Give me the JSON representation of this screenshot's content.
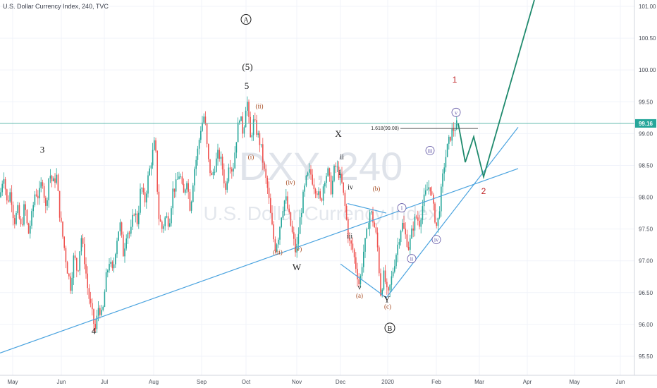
{
  "title": "U.S. Dollar Currency Index, 240, TVC",
  "watermark": {
    "symbol": "DXY, 240",
    "name": "U.S. Dollar Currency Index"
  },
  "chart_data": {
    "type": "candlestick",
    "y_ticks": [
      "95.50",
      "96.00",
      "96.50",
      "97.00",
      "97.50",
      "98.00",
      "98.50",
      "99.00",
      "99.50",
      "100.00",
      "100.50",
      "101.00"
    ],
    "x_ticks": [
      "May",
      "Jun",
      "Jul",
      "Aug",
      "Sep",
      "Oct",
      "Nov",
      "Dec",
      "2020",
      "Feb",
      "Mar",
      "Apr",
      "May",
      "Jun"
    ],
    "ylim": [
      95.2,
      101.1
    ],
    "last_price": {
      "label": "99.16",
      "value": 99.16,
      "color": "#26a69a"
    },
    "fib_label": {
      "text": "1.618(99.08)",
      "value": 99.08
    },
    "colors": {
      "up": "#26a69a",
      "down": "#ef5350",
      "trendline": "#4aa3df",
      "projection": "#1f8a6d",
      "hline": "#5fb9ad"
    },
    "price_path": [
      [
        0,
        98.0
      ],
      [
        5,
        98.4
      ],
      [
        10,
        97.9
      ],
      [
        15,
        98.1
      ],
      [
        20,
        97.6
      ],
      [
        25,
        97.8
      ],
      [
        30,
        97.5
      ],
      [
        35,
        97.9
      ],
      [
        40,
        97.4
      ],
      [
        45,
        97.7
      ],
      [
        50,
        98.1
      ],
      [
        55,
        98.0
      ],
      [
        60,
        98.3
      ],
      [
        65,
        97.8
      ],
      [
        70,
        98.4
      ],
      [
        75,
        98.2
      ],
      [
        80,
        98.35
      ],
      [
        85,
        97.7
      ],
      [
        90,
        97.3
      ],
      [
        95,
        96.9
      ],
      [
        100,
        96.6
      ],
      [
        105,
        97.1
      ],
      [
        110,
        96.8
      ],
      [
        115,
        97.4
      ],
      [
        120,
        97.0
      ],
      [
        125,
        96.5
      ],
      [
        130,
        96.2
      ],
      [
        135,
        95.9
      ],
      [
        140,
        96.3
      ],
      [
        145,
        96.1
      ],
      [
        150,
        96.7
      ],
      [
        155,
        97.0
      ],
      [
        160,
        96.8
      ],
      [
        165,
        97.3
      ],
      [
        170,
        97.6
      ],
      [
        175,
        97.1
      ],
      [
        180,
        97.5
      ],
      [
        185,
        97.4
      ],
      [
        190,
        97.8
      ],
      [
        195,
        97.6
      ],
      [
        200,
        98.2
      ],
      [
        205,
        97.9
      ],
      [
        210,
        98.3
      ],
      [
        215,
        98.6
      ],
      [
        220,
        98.9
      ],
      [
        225,
        97.7
      ],
      [
        230,
        97.5
      ],
      [
        235,
        97.7
      ],
      [
        240,
        97.6
      ],
      [
        245,
        98.1
      ],
      [
        250,
        98.2
      ],
      [
        255,
        98.4
      ],
      [
        260,
        98.0
      ],
      [
        265,
        98.3
      ],
      [
        270,
        97.8
      ],
      [
        275,
        98.4
      ],
      [
        280,
        98.7
      ],
      [
        285,
        99.1
      ],
      [
        290,
        99.3
      ],
      [
        295,
        98.6
      ],
      [
        300,
        98.3
      ],
      [
        305,
        98.5
      ],
      [
        310,
        98.7
      ],
      [
        315,
        98.5
      ],
      [
        320,
        98.1
      ],
      [
        325,
        98.6
      ],
      [
        330,
        98.4
      ],
      [
        335,
        98.9
      ],
      [
        340,
        99.3
      ],
      [
        345,
        99.0
      ],
      [
        350,
        99.6
      ],
      [
        355,
        98.9
      ],
      [
        360,
        99.2
      ],
      [
        365,
        99.0
      ],
      [
        370,
        98.8
      ],
      [
        375,
        98.4
      ],
      [
        380,
        98.1
      ],
      [
        385,
        97.6
      ],
      [
        390,
        97.2
      ],
      [
        395,
        97.4
      ],
      [
        400,
        97.8
      ],
      [
        405,
        98.0
      ],
      [
        410,
        97.7
      ],
      [
        415,
        97.4
      ],
      [
        420,
        97.1
      ],
      [
        425,
        97.6
      ],
      [
        430,
        98.0
      ],
      [
        435,
        98.3
      ],
      [
        440,
        98.4
      ],
      [
        445,
        98.2
      ],
      [
        450,
        98.1
      ],
      [
        455,
        97.9
      ],
      [
        460,
        98.3
      ],
      [
        465,
        98.4
      ],
      [
        470,
        98.1
      ],
      [
        475,
        98.5
      ],
      [
        480,
        98.4
      ],
      [
        485,
        98.2
      ],
      [
        490,
        97.8
      ],
      [
        495,
        97.3
      ],
      [
        500,
        97.2
      ],
      [
        505,
        96.9
      ],
      [
        510,
        96.6
      ],
      [
        515,
        97.1
      ],
      [
        520,
        97.4
      ],
      [
        525,
        97.8
      ],
      [
        530,
        97.6
      ],
      [
        535,
        97.3
      ],
      [
        540,
        96.5
      ],
      [
        545,
        96.8
      ],
      [
        550,
        96.4
      ],
      [
        555,
        96.7
      ],
      [
        560,
        97.0
      ],
      [
        565,
        97.3
      ],
      [
        570,
        97.6
      ],
      [
        575,
        97.4
      ],
      [
        580,
        97.2
      ],
      [
        585,
        97.5
      ],
      [
        590,
        97.7
      ],
      [
        595,
        97.6
      ],
      [
        600,
        97.9
      ],
      [
        605,
        98.1
      ],
      [
        610,
        98.2
      ],
      [
        615,
        97.8
      ],
      [
        620,
        97.5
      ],
      [
        625,
        98.0
      ],
      [
        630,
        98.5
      ],
      [
        635,
        98.8
      ],
      [
        640,
        99.0
      ],
      [
        645,
        99.1
      ],
      [
        650,
        99.16
      ]
    ],
    "trendlines": [
      {
        "from": [
          0,
          95.55
        ],
        "to": [
          735,
          98.45
        ]
      },
      {
        "from": [
          548,
          96.42
        ],
        "to": [
          735,
          99.1
        ]
      },
      {
        "from": [
          493,
          97.9
        ],
        "to": [
          548,
          97.75
        ]
      },
      {
        "from": [
          483,
          96.95
        ],
        "to": [
          548,
          96.42
        ]
      }
    ],
    "projection": [
      [
        650,
        99.16
      ],
      [
        660,
        98.55
      ],
      [
        672,
        98.95
      ],
      [
        686,
        98.32
      ],
      [
        758,
        101.1
      ]
    ],
    "wave_labels": [
      {
        "text": "A",
        "x": 349,
        "y": 100.75,
        "style": "black-circle"
      },
      {
        "text": "(5)",
        "x": 351,
        "y": 100.0,
        "style": "black"
      },
      {
        "text": "5",
        "x": 350,
        "y": 99.7,
        "style": "black"
      },
      {
        "text": "3",
        "x": 60,
        "y": 98.7,
        "style": "black"
      },
      {
        "text": "4",
        "x": 133,
        "y": 95.85,
        "style": "black"
      },
      {
        "text": "W",
        "x": 421,
        "y": 96.85,
        "style": "black"
      },
      {
        "text": "X",
        "x": 480,
        "y": 98.95,
        "style": "black"
      },
      {
        "text": "Y",
        "x": 549,
        "y": 96.35,
        "style": "black"
      },
      {
        "text": "B",
        "x": 553,
        "y": 95.9,
        "style": "black-circle"
      },
      {
        "text": "(ii)",
        "x": 368,
        "y": 99.4,
        "style": "brown"
      },
      {
        "text": "(i)",
        "x": 356,
        "y": 98.6,
        "style": "brown"
      },
      {
        "text": "(iv)",
        "x": 412,
        "y": 98.2,
        "style": "brown"
      },
      {
        "text": "(iii)",
        "x": 394,
        "y": 97.1,
        "style": "brown"
      },
      {
        "text": "(v)",
        "x": 423,
        "y": 97.15,
        "style": "brown"
      },
      {
        "text": "(b)",
        "x": 534,
        "y": 98.1,
        "style": "brown"
      },
      {
        "text": "(a)",
        "x": 510,
        "y": 96.42,
        "style": "brown"
      },
      {
        "text": "(c)",
        "x": 550,
        "y": 96.25,
        "style": "brown"
      },
      {
        "text": "ii",
        "x": 485,
        "y": 98.6,
        "style": "black-sm"
      },
      {
        "text": "i",
        "x": 482,
        "y": 98.35,
        "style": "black-sm"
      },
      {
        "text": "iv",
        "x": 497,
        "y": 98.12,
        "style": "black-sm"
      },
      {
        "text": "iii",
        "x": 496,
        "y": 97.35,
        "style": "black-sm"
      },
      {
        "text": "v",
        "x": 510,
        "y": 96.55,
        "style": "black-sm"
      },
      {
        "text": "v",
        "x": 647,
        "y": 99.3,
        "style": "purple-circle"
      },
      {
        "text": "iii",
        "x": 610,
        "y": 98.7,
        "style": "purple-circle"
      },
      {
        "text": "i",
        "x": 570,
        "y": 97.8,
        "style": "purple-circle"
      },
      {
        "text": "iv",
        "x": 619,
        "y": 97.3,
        "style": "purple-circle"
      },
      {
        "text": "ii",
        "x": 584,
        "y": 97.0,
        "style": "purple-circle"
      },
      {
        "text": "1",
        "x": 645,
        "y": 99.8,
        "style": "red"
      },
      {
        "text": "2",
        "x": 686,
        "y": 98.05,
        "style": "red"
      }
    ]
  }
}
